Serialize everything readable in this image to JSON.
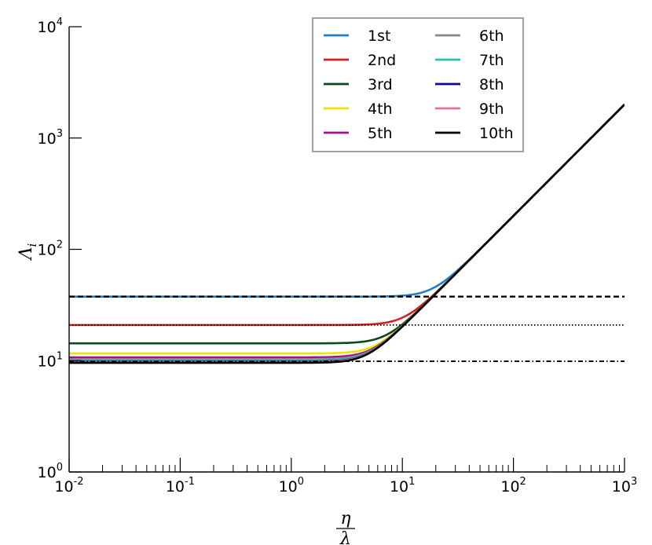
{
  "chart_data": {
    "type": "line",
    "xscale": "log",
    "yscale": "log",
    "xlim": [
      0.01,
      1000
    ],
    "ylim": [
      1,
      10000
    ],
    "x_ticks": [
      {
        "base": "10",
        "exp": "-2"
      },
      {
        "base": "10",
        "exp": "-1"
      },
      {
        "base": "10",
        "exp": "0"
      },
      {
        "base": "10",
        "exp": "1"
      },
      {
        "base": "10",
        "exp": "2"
      },
      {
        "base": "10",
        "exp": "3"
      }
    ],
    "y_ticks": [
      {
        "base": "10",
        "exp": "0"
      },
      {
        "base": "10",
        "exp": "1"
      },
      {
        "base": "10",
        "exp": "2"
      },
      {
        "base": "10",
        "exp": "3"
      },
      {
        "base": "10",
        "exp": "4"
      }
    ],
    "xlabel_num": "η",
    "xlabel_den": "λ",
    "ylabel": "Λ",
    "ylabel_sub": "i",
    "grid": false,
    "legend_position": "top-center",
    "series": [
      {
        "name": "1st",
        "color": "#1f7fc4",
        "low": 37.6,
        "high_coeff": 2.0
      },
      {
        "name": "2nd",
        "color": "#d62020",
        "low": 20.9,
        "high_coeff": 2.0
      },
      {
        "name": "3rd",
        "color": "#0a4a1a",
        "low": 14.3,
        "high_coeff": 2.0
      },
      {
        "name": "4th",
        "color": "#f2e200",
        "low": 11.6,
        "high_coeff": 2.0
      },
      {
        "name": "5th",
        "color": "#a0108f",
        "low": 10.7,
        "high_coeff": 2.0
      },
      {
        "name": "6th",
        "color": "#8a8a8a",
        "low": 10.3,
        "high_coeff": 2.0
      },
      {
        "name": "7th",
        "color": "#2abfb4",
        "low": 10.0,
        "high_coeff": 2.0
      },
      {
        "name": "8th",
        "color": "#0a0a8c",
        "low": 9.8,
        "high_coeff": 2.0
      },
      {
        "name": "9th",
        "color": "#e8709a",
        "low": 9.7,
        "high_coeff": 2.0
      },
      {
        "name": "10th",
        "color": "#000000",
        "low": 9.55,
        "high_coeff": 2.0
      }
    ],
    "reference_lines": [
      {
        "y": 37.6,
        "style": "dashed"
      },
      {
        "y": 20.9,
        "style": "dotted"
      },
      {
        "y": 9.87,
        "style": "dashdot"
      }
    ]
  }
}
